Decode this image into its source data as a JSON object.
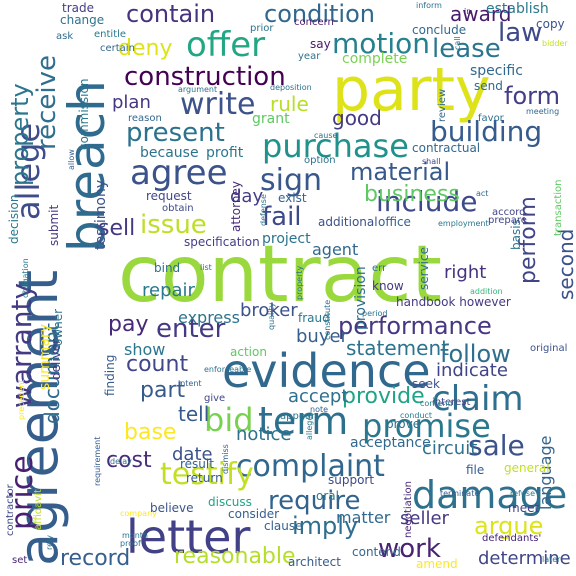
{
  "words": [
    {
      "text": "contract",
      "color": "#9ad93d"
    },
    {
      "text": "agreement",
      "color": "#355e8d"
    },
    {
      "text": "breach",
      "color": "#2f6b8e"
    },
    {
      "text": "party",
      "color": "#dde318"
    },
    {
      "text": "evidence",
      "color": "#31688e"
    },
    {
      "text": "letter",
      "color": "#424086"
    },
    {
      "text": "damage",
      "color": "#2d718e"
    },
    {
      "text": "term",
      "color": "#2d708e"
    },
    {
      "text": "price",
      "color": "#482173"
    },
    {
      "text": "warranty",
      "color": "#443a83"
    },
    {
      "text": "offer",
      "color": "#22a785"
    },
    {
      "text": "agree",
      "color": "#3b528b"
    },
    {
      "text": "motion",
      "color": "#26818e"
    },
    {
      "text": "allege",
      "color": "#3e4c8a"
    },
    {
      "text": "construction",
      "color": "#440154"
    },
    {
      "text": "write",
      "color": "#3b528b"
    },
    {
      "text": "purchase",
      "color": "#21918c"
    },
    {
      "text": "present",
      "color": "#2c728e"
    },
    {
      "text": "building",
      "color": "#365c8d"
    },
    {
      "text": "include",
      "color": "#3e4989"
    },
    {
      "text": "sign",
      "color": "#38588c"
    },
    {
      "text": "material",
      "color": "#38598c"
    },
    {
      "text": "claim",
      "color": "#2e6f8e"
    },
    {
      "text": "promise",
      "color": "#2a788e"
    },
    {
      "text": "complaint",
      "color": "#31678e"
    },
    {
      "text": "performance",
      "color": "#453781"
    },
    {
      "text": "testify",
      "color": "#c2df23"
    },
    {
      "text": "issue",
      "color": "#bddf26"
    },
    {
      "text": "bid",
      "color": "#7ad151"
    },
    {
      "text": "enter",
      "color": "#443983"
    },
    {
      "text": "follow",
      "color": "#2e6e8e"
    },
    {
      "text": "sale",
      "color": "#3b528b"
    },
    {
      "text": "require",
      "color": "#33638d"
    },
    {
      "text": "imply",
      "color": "#2e6e8e"
    },
    {
      "text": "argue",
      "color": "#dde318"
    },
    {
      "text": "work",
      "color": "#482374"
    },
    {
      "text": "record",
      "color": "#355f8d"
    },
    {
      "text": "reasonable",
      "color": "#b5de2b"
    },
    {
      "text": "contain",
      "color": "#46327e"
    },
    {
      "text": "condition",
      "color": "#31678e"
    },
    {
      "text": "law",
      "color": "#3e4989"
    },
    {
      "text": "lease",
      "color": "#2a768e"
    },
    {
      "text": "receive",
      "color": "#2e6e8e"
    },
    {
      "text": "property",
      "color": "#2a768e"
    },
    {
      "text": "deny",
      "color": "#dde318"
    },
    {
      "text": "form",
      "color": "#433e85"
    },
    {
      "text": "award",
      "color": "#481a6c"
    },
    {
      "text": "business",
      "color": "#5ec962"
    },
    {
      "text": "fail",
      "color": "#3e4989"
    },
    {
      "text": "sell",
      "color": "#443983"
    },
    {
      "text": "pay",
      "color": "#482878"
    },
    {
      "text": "count",
      "color": "#404688"
    },
    {
      "text": "part",
      "color": "#375a8c"
    },
    {
      "text": "base",
      "color": "#fde725"
    },
    {
      "text": "cost",
      "color": "#472d7b"
    },
    {
      "text": "document",
      "color": "#2f6c8e"
    },
    {
      "text": "perform",
      "color": "#414487"
    },
    {
      "text": "provide",
      "color": "#20a386"
    },
    {
      "text": "statement",
      "color": "#2c738e"
    },
    {
      "text": "plan",
      "color": "#453781"
    },
    {
      "text": "rule",
      "color": "#b8de29"
    },
    {
      "text": "good",
      "color": "#443983"
    },
    {
      "text": "day",
      "color": "#433e85"
    },
    {
      "text": "repair",
      "color": "#2a788e"
    },
    {
      "text": "broker",
      "color": "#3b528b"
    },
    {
      "text": "buyer",
      "color": "#355f8d"
    },
    {
      "text": "tell",
      "color": "#365c8d"
    },
    {
      "text": "accept",
      "color": "#2d708e"
    },
    {
      "text": "date",
      "color": "#3b528b"
    },
    {
      "text": "notice",
      "color": "#2c728e"
    },
    {
      "text": "circuit",
      "color": "#2d718e"
    },
    {
      "text": "seller",
      "color": "#443983"
    },
    {
      "text": "matter",
      "color": "#31688e"
    },
    {
      "text": "indicate",
      "color": "#414487"
    },
    {
      "text": "right",
      "color": "#46327e"
    },
    {
      "text": "second",
      "color": "#3b528b"
    },
    {
      "text": "language",
      "color": "#33638d"
    },
    {
      "text": "determine",
      "color": "#404688"
    },
    {
      "text": "show",
      "color": "#2a768e"
    },
    {
      "text": "express",
      "color": "#2c738e"
    },
    {
      "text": "testimony",
      "color": "#3b528b"
    },
    {
      "text": "because",
      "color": "#2c738e"
    },
    {
      "text": "profit",
      "color": "#2a768e"
    },
    {
      "text": "agent",
      "color": "#31688e"
    },
    {
      "text": "project",
      "color": "#2c738e"
    },
    {
      "text": "provision",
      "color": "#2e6e8e"
    },
    {
      "text": "complete",
      "color": "#7ad151"
    },
    {
      "text": "grant",
      "color": "#5ec962"
    },
    {
      "text": "specific",
      "color": "#31688e"
    },
    {
      "text": "copy",
      "color": "#3b528b"
    },
    {
      "text": "trade",
      "color": "#433e85"
    },
    {
      "text": "change",
      "color": "#2c738e"
    },
    {
      "text": "concern",
      "color": "#481a6c"
    },
    {
      "text": "establish",
      "color": "#2a788e"
    },
    {
      "text": "summary",
      "color": "#fde725"
    },
    {
      "text": "contractual",
      "color": "#31688e"
    },
    {
      "text": "office",
      "color": "#355f8d"
    },
    {
      "text": "additional",
      "color": "#3b528b"
    },
    {
      "text": "handbook however",
      "color": "#443983"
    },
    {
      "text": "specification",
      "color": "#433e85"
    },
    {
      "text": "request",
      "color": "#404688"
    },
    {
      "text": "obtain",
      "color": "#3e4989"
    },
    {
      "text": "exist",
      "color": "#33638d"
    },
    {
      "text": "attorney",
      "color": "#482878"
    },
    {
      "text": "decision",
      "color": "#2a788e"
    },
    {
      "text": "commission",
      "color": "#2a788e"
    },
    {
      "text": "contractor",
      "color": "#3e4989"
    },
    {
      "text": "set",
      "color": "#482374"
    },
    {
      "text": "negotiation",
      "color": "#482878"
    },
    {
      "text": "contend",
      "color": "#31688e"
    },
    {
      "text": "architect",
      "color": "#365c8d"
    },
    {
      "text": "amend",
      "color": "#fde725"
    },
    {
      "text": "support",
      "color": "#3e4989"
    },
    {
      "text": "oral",
      "color": "#2a788e"
    },
    {
      "text": "discuss",
      "color": "#20a386"
    },
    {
      "text": "consider",
      "color": "#355f8d"
    },
    {
      "text": "believe",
      "color": "#3b528b"
    },
    {
      "text": "return",
      "color": "#365c8d"
    },
    {
      "text": "result",
      "color": "#355f8d"
    },
    {
      "text": "acceptance",
      "color": "#31688e"
    },
    {
      "text": "general",
      "color": "#c2df23"
    },
    {
      "text": "file",
      "color": "#365c8d"
    },
    {
      "text": "prove",
      "color": "#2d708e"
    },
    {
      "text": "seek",
      "color": "#3b528b"
    },
    {
      "text": "interest",
      "color": "#414487"
    },
    {
      "text": "original",
      "color": "#3b528b"
    },
    {
      "text": "meet",
      "color": "#414487"
    },
    {
      "text": "clause",
      "color": "#355f8d"
    },
    {
      "text": "entitle",
      "color": "#2a788e"
    },
    {
      "text": "certain",
      "color": "#31688e"
    },
    {
      "text": "prior",
      "color": "#2c738e"
    },
    {
      "text": "year",
      "color": "#2c738e"
    },
    {
      "text": "say",
      "color": "#481a6c"
    },
    {
      "text": "conclude",
      "color": "#31688e"
    },
    {
      "text": "send",
      "color": "#31688e"
    },
    {
      "text": "ask",
      "color": "#2e6e8e"
    },
    {
      "text": "favor",
      "color": "#2d708e"
    },
    {
      "text": "deposition",
      "color": "#2c738e"
    },
    {
      "text": "argument",
      "color": "#2c738e"
    },
    {
      "text": "reason",
      "color": "#31688e"
    },
    {
      "text": "option",
      "color": "#2c738e"
    },
    {
      "text": "fraud",
      "color": "#2a788e"
    },
    {
      "text": "action",
      "color": "#5ec962"
    },
    {
      "text": "finding",
      "color": "#365c8d"
    },
    {
      "text": "give",
      "color": "#404688"
    },
    {
      "text": "appear",
      "color": "#2a788e"
    },
    {
      "text": "owner",
      "color": "#2c738e"
    },
    {
      "text": "deliver",
      "color": "#443983"
    },
    {
      "text": "submit",
      "color": "#443983"
    },
    {
      "text": "inform",
      "color": "#2d718e"
    },
    {
      "text": "bind",
      "color": "#2d708e"
    },
    {
      "text": "service",
      "color": "#2e6e8e"
    },
    {
      "text": "know",
      "color": "#443983"
    },
    {
      "text": "err",
      "color": "#2c738e"
    },
    {
      "text": "basis",
      "color": "#2c738e"
    },
    {
      "text": "accord",
      "color": "#414487"
    },
    {
      "text": "prepare",
      "color": "#414487"
    },
    {
      "text": "transaction",
      "color": "#5ec962"
    },
    {
      "text": "shall",
      "color": "#404688"
    },
    {
      "text": "review",
      "color": "#31688e"
    },
    {
      "text": "meeting",
      "color": "#31688e"
    },
    {
      "text": "act",
      "color": "#31688e"
    },
    {
      "text": "employment",
      "color": "#2a788e"
    },
    {
      "text": "defense",
      "color": "#2c738e"
    },
    {
      "text": "enforceable",
      "color": "#2c738e"
    },
    {
      "text": "intent",
      "color": "#33638d"
    },
    {
      "text": "note",
      "color": "#33638d"
    },
    {
      "text": "company",
      "color": "#fde725"
    },
    {
      "text": "affidavit",
      "color": "#c2df23"
    },
    {
      "text": "requirement",
      "color": "#365c8d"
    },
    {
      "text": "obligation",
      "color": "#2a788e"
    },
    {
      "text": "precedent",
      "color": "#fde725"
    },
    {
      "text": "quality",
      "color": "#2c738e"
    },
    {
      "text": "constitute",
      "color": "#2c738e"
    },
    {
      "text": "terminate",
      "color": "#365c8d"
    },
    {
      "text": "refuse",
      "color": "#2a788e"
    },
    {
      "text": "defendants'",
      "color": "#482374"
    },
    {
      "text": "addition",
      "color": "#35b779"
    },
    {
      "text": "period",
      "color": "#2c738e"
    },
    {
      "text": "conduct",
      "color": "#2a788e"
    },
    {
      "text": "allow",
      "color": "#365c8d"
    },
    {
      "text": "later",
      "color": "#2a788e"
    },
    {
      "text": "property",
      "color": "#2c738e"
    },
    {
      "text": "list",
      "color": "#2c738e"
    },
    {
      "text": "dismiss",
      "color": "#31688e"
    },
    {
      "text": "month",
      "color": "#2c738e"
    },
    {
      "text": "rely",
      "color": "#2c738e"
    },
    {
      "text": "bidder",
      "color": "#c2df23"
    },
    {
      "text": "call",
      "color": "#2d708e"
    },
    {
      "text": "cause",
      "color": "#2d708e"
    },
    {
      "text": "delay",
      "color": "#2c738e"
    },
    {
      "text": "proof",
      "color": "#2d708e"
    },
    {
      "text": "allege",
      "color": "#2c738e"
    },
    {
      "text": "contend",
      "color": "#2a788e"
    },
    {
      "text": "in",
      "color": "#482374"
    }
  ]
}
